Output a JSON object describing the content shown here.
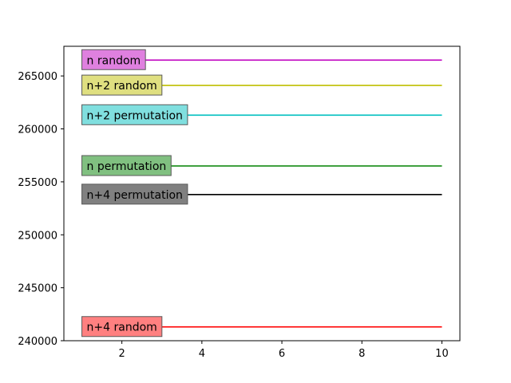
{
  "chart_data": {
    "type": "line",
    "title": "",
    "xlabel": "",
    "ylabel": "",
    "xlim": [
      0.55,
      10.45
    ],
    "ylim": [
      240000,
      267800
    ],
    "xticks": [
      2,
      4,
      6,
      8,
      10
    ],
    "yticks": [
      240000,
      245000,
      250000,
      255000,
      260000,
      265000
    ],
    "grid": false,
    "series": [
      {
        "name": "n random",
        "color": "#bf00bf",
        "x": [
          1,
          10
        ],
        "y": [
          266500,
          266500
        ]
      },
      {
        "name": "n+2 random",
        "color": "#bfbf00",
        "x": [
          1,
          10
        ],
        "y": [
          264100,
          264100
        ]
      },
      {
        "name": "n+2 permutation",
        "color": "#00bfbf",
        "x": [
          1,
          10
        ],
        "y": [
          261300,
          261300
        ]
      },
      {
        "name": "n permutation",
        "color": "#008000",
        "x": [
          1,
          10
        ],
        "y": [
          256500,
          256500
        ]
      },
      {
        "name": "n+4 permutation",
        "color": "#000000",
        "x": [
          1,
          10
        ],
        "y": [
          253800,
          253800
        ]
      },
      {
        "name": "n+4 random",
        "color": "#ff0000",
        "x": [
          1,
          10
        ],
        "y": [
          241300,
          241300
        ]
      }
    ]
  }
}
